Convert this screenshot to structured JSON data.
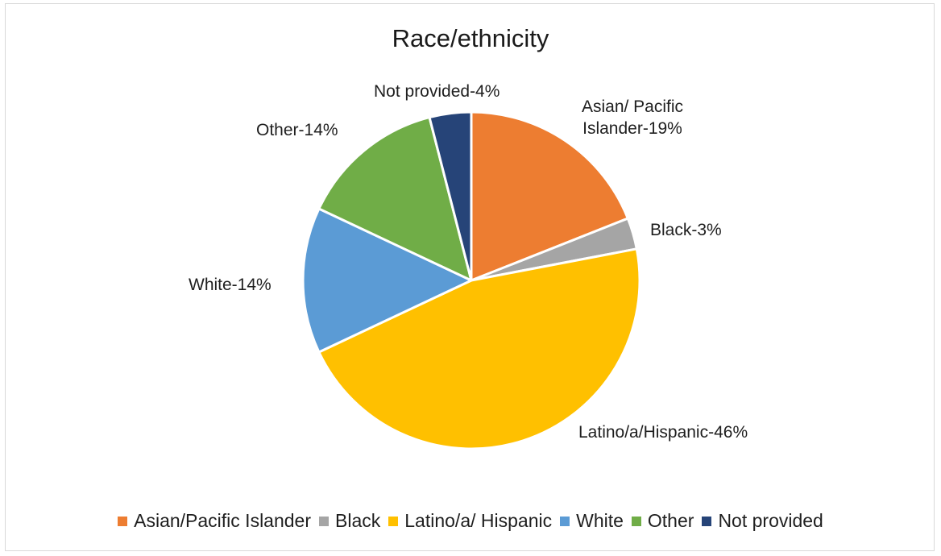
{
  "chart_data": {
    "type": "pie",
    "title": "Race/ethnicity",
    "legend_position": "bottom",
    "slices": [
      {
        "name": "Asian/Pacific Islander",
        "value": 19,
        "label": "Asian/ Pacific Islander-19%",
        "color": "#ed7d31"
      },
      {
        "name": "Black",
        "value": 3,
        "label": "Black-3%",
        "color": "#a5a5a5"
      },
      {
        "name": "Latino/a/ Hispanic",
        "value": 46,
        "label": "Latino/a/Hispanic-46%",
        "color": "#ffc000"
      },
      {
        "name": "White",
        "value": 14,
        "label": "White-14%",
        "color": "#5b9bd5"
      },
      {
        "name": "Other",
        "value": 14,
        "label": "Other-14%",
        "color": "#70ad47"
      },
      {
        "name": "Not provided",
        "value": 4,
        "label": "Not provided-4%",
        "color": "#264478"
      }
    ]
  }
}
